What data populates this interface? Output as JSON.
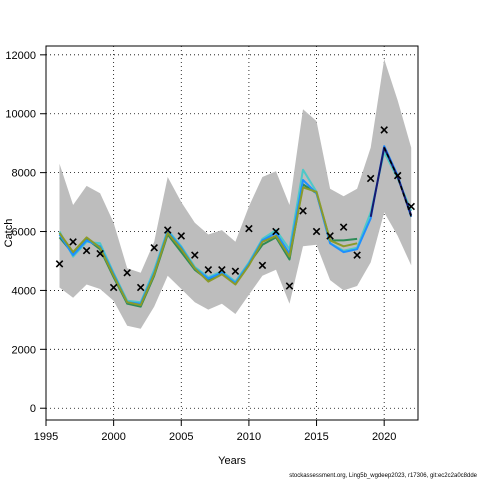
{
  "chart_data": {
    "type": "line",
    "title": "",
    "xlabel": "Years",
    "ylabel": "Catch",
    "xlim": [
      1995,
      2022.5
    ],
    "ylim": [
      -400,
      12300
    ],
    "xticks": [
      1995,
      2000,
      2005,
      2010,
      2015,
      2020
    ],
    "yticks": [
      0,
      2000,
      4000,
      6000,
      8000,
      10000,
      12000
    ],
    "grid": true,
    "years": [
      1996,
      1997,
      1998,
      1999,
      2000,
      2001,
      2002,
      2003,
      2004,
      2005,
      2006,
      2007,
      2008,
      2009,
      2010,
      2011,
      2012,
      2013,
      2014,
      2015,
      2016,
      2017,
      2018,
      2019,
      2020,
      2021,
      2022
    ],
    "band_upper": [
      8300,
      6900,
      7550,
      7300,
      6300,
      4750,
      4600,
      5650,
      7850,
      7000,
      6300,
      5900,
      6050,
      5650,
      6850,
      7850,
      8050,
      6900,
      10150,
      9750,
      7450,
      7200,
      7450,
      8850,
      11850,
      10450,
      8850
    ],
    "band_lower": [
      4100,
      3750,
      4200,
      4050,
      3650,
      2800,
      2700,
      3450,
      4500,
      4050,
      3600,
      3350,
      3550,
      3200,
      3850,
      4500,
      4700,
      3550,
      5500,
      5550,
      4350,
      4000,
      4150,
      4950,
      6650,
      5850,
      4850
    ],
    "series": [
      {
        "color": "#2e8b57",
        "values": [
          5800,
          5250,
          5750,
          5400,
          4450,
          3550,
          3450,
          4500,
          5900,
          5300,
          4700,
          4350,
          4600,
          4250,
          4900,
          5550,
          5800,
          5050,
          7600,
          7300,
          5700,
          5700,
          5750,
          null,
          null,
          null,
          null
        ]
      },
      {
        "color": "#4ec8c8",
        "values": [
          6000,
          5150,
          5650,
          5600,
          4600,
          3650,
          3600,
          4700,
          6050,
          5500,
          4800,
          4450,
          4650,
          4300,
          4950,
          5750,
          6050,
          5400,
          8100,
          7350,
          5600,
          5350,
          5450,
          6650,
          8700,
          7800,
          6700
        ]
      },
      {
        "color": "#1e90ff",
        "values": [
          5900,
          5200,
          5700,
          5500,
          4550,
          3600,
          3550,
          4600,
          6000,
          5450,
          4750,
          4400,
          4600,
          4250,
          4900,
          5700,
          5950,
          5250,
          7750,
          7300,
          5600,
          5300,
          5400,
          6450,
          8900,
          7900,
          6500
        ]
      },
      {
        "color": "#8b9a2a",
        "values": [
          5950,
          5300,
          5800,
          5450,
          4500,
          3600,
          3500,
          4550,
          5950,
          5400,
          4750,
          4300,
          4550,
          4200,
          4850,
          5650,
          5850,
          5150,
          7500,
          7350,
          5700,
          5500,
          5600,
          null,
          null,
          null,
          null
        ]
      },
      {
        "color": "#191970",
        "values": [
          null,
          null,
          null,
          null,
          null,
          null,
          null,
          null,
          null,
          null,
          null,
          null,
          null,
          null,
          null,
          null,
          null,
          null,
          null,
          null,
          null,
          null,
          null,
          6500,
          8850,
          7850,
          6550
        ]
      }
    ],
    "projection": {
      "color": "#000000",
      "years": [
        2020,
        2021,
        2022
      ],
      "values": [
        8850,
        7850,
        6500
      ]
    },
    "observed": {
      "marker": "x",
      "color": "#000000",
      "values": [
        4900,
        5650,
        5350,
        5250,
        4100,
        4600,
        4100,
        5450,
        6050,
        5850,
        5200,
        4700,
        4700,
        4650,
        6100,
        4850,
        6000,
        4150,
        6700,
        6000,
        5850,
        6150,
        5200,
        7800,
        9450,
        7900,
        6850
      ]
    }
  },
  "footer": "stockassessment.org, Ling5b_wgdeep2023, r17306, git:ec2c2a0c8dde"
}
